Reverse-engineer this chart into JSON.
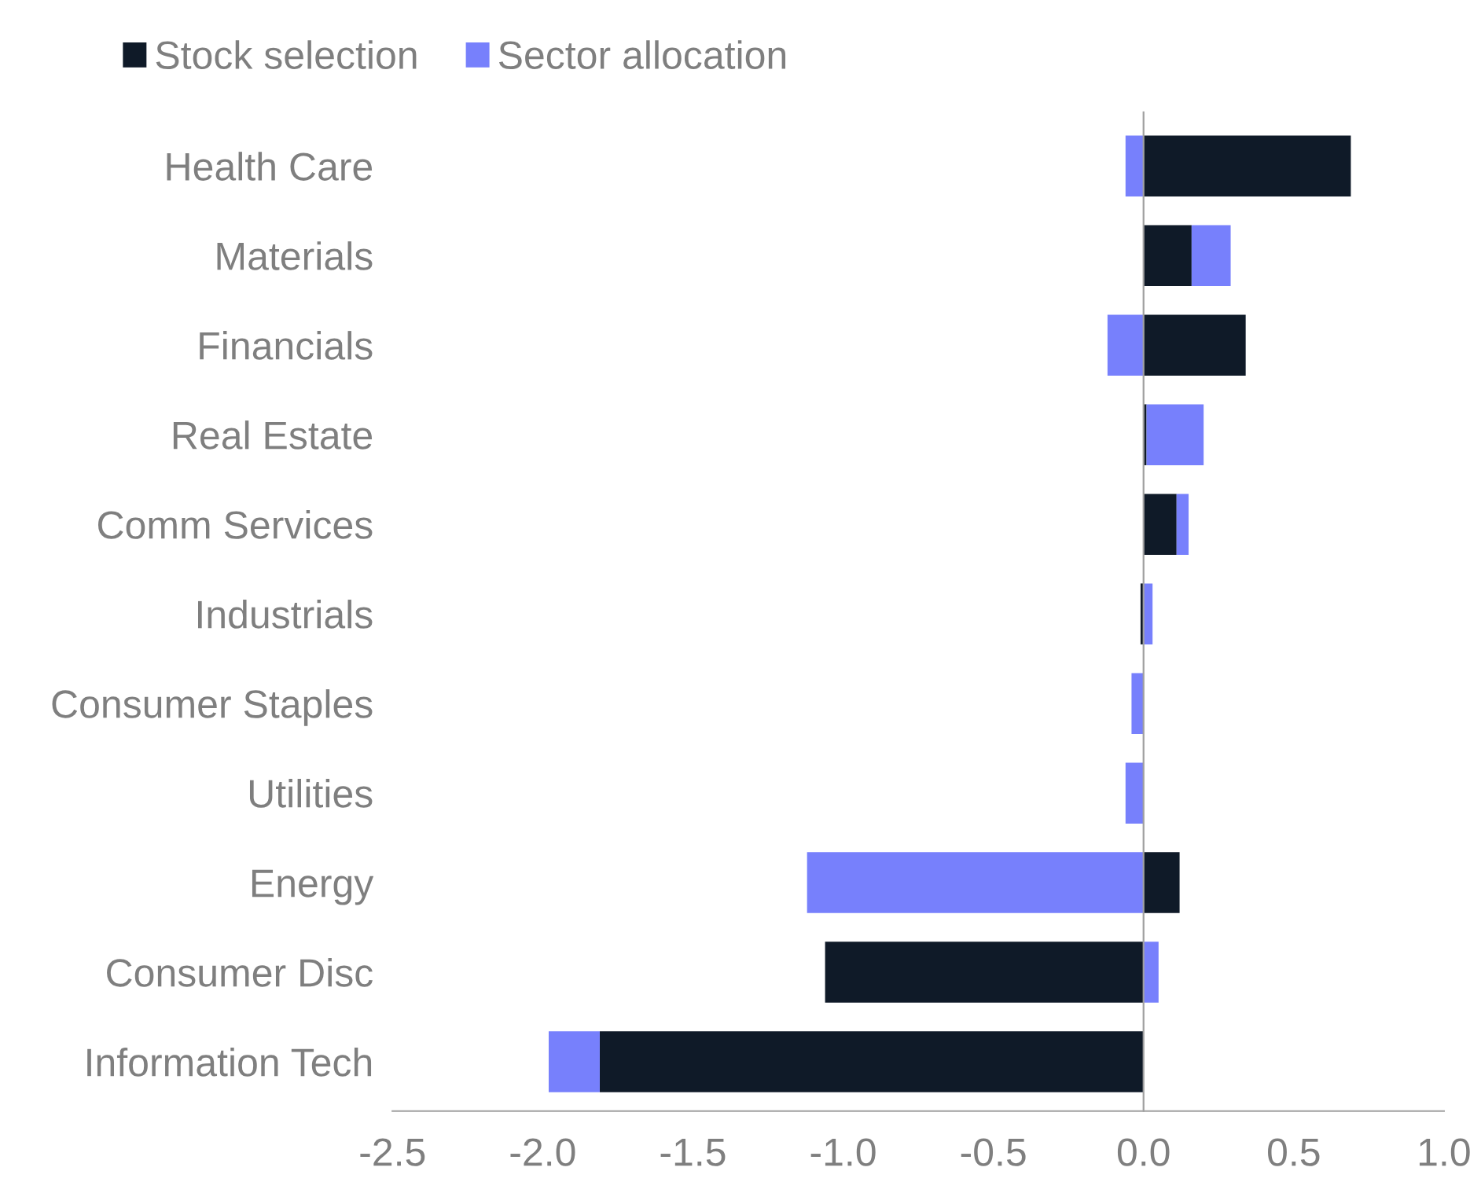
{
  "chart_data": {
    "type": "bar",
    "orientation": "horizontal",
    "stacked": true,
    "categories": [
      "Health Care",
      "Materials",
      "Financials",
      "Real Estate",
      "Comm Services",
      "Industrials",
      "Consumer Staples",
      "Utilities",
      "Energy",
      "Consumer Disc",
      "Information Tech"
    ],
    "series": [
      {
        "name": "Stock selection",
        "color": "#0f1a28",
        "values": [
          0.69,
          0.16,
          0.34,
          0.01,
          0.11,
          -0.01,
          null,
          null,
          0.12,
          -1.06,
          -1.81
        ]
      },
      {
        "name": "Sector allocation",
        "color": "#7780fc",
        "values": [
          -0.06,
          0.13,
          -0.12,
          0.19,
          0.04,
          0.03,
          -0.04,
          -0.06,
          -1.12,
          0.05,
          -0.17
        ]
      }
    ],
    "xlim": [
      -2.5,
      1.0
    ],
    "xticks": [
      {
        "value": -2.5,
        "label": "-2.5"
      },
      {
        "value": -2.0,
        "label": "-2.0"
      },
      {
        "value": -1.5,
        "label": "-1.5"
      },
      {
        "value": -1.0,
        "label": "-1.0"
      },
      {
        "value": -0.5,
        "label": "-0.5"
      },
      {
        "value": 0.0,
        "label": "0.0"
      },
      {
        "value": 0.5,
        "label": "0.5"
      },
      {
        "value": 1.0,
        "label": "1.0"
      }
    ],
    "legend": "top left"
  }
}
